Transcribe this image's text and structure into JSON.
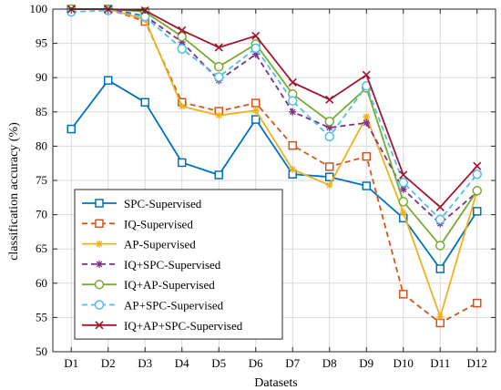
{
  "chart_data": {
    "type": "line",
    "xlabel": "Datasets",
    "ylabel": "classification accuracy (%)",
    "ylim": [
      50,
      100
    ],
    "yticks": [
      50,
      55,
      60,
      65,
      70,
      75,
      80,
      85,
      90,
      95,
      100
    ],
    "grid": true,
    "legend_position": "bottom-left",
    "categories": [
      "D1",
      "D2",
      "D3",
      "D4",
      "D5",
      "D6",
      "D7",
      "D8",
      "D9",
      "D10",
      "D11",
      "D12"
    ],
    "series": [
      {
        "name": "SPC-Supervised",
        "color": "#0072BD",
        "dash": "solid",
        "marker": "square",
        "values": [
          82.5,
          89.6,
          86.4,
          77.6,
          75.8,
          83.9,
          75.9,
          75.5,
          74.2,
          69.5,
          62.1,
          70.5
        ]
      },
      {
        "name": "IQ-Supervised",
        "color": "#D95319",
        "dash": "dashed",
        "marker": "square",
        "values": [
          100,
          100,
          98.2,
          86.4,
          85.1,
          86.3,
          80.1,
          77.0,
          78.5,
          58.4,
          54.2,
          57.1
        ]
      },
      {
        "name": "AP-Supervised",
        "color": "#EDB120",
        "dash": "solid",
        "marker": "asterisk",
        "values": [
          100,
          100,
          98.5,
          85.8,
          84.5,
          85.2,
          76.6,
          74.3,
          84.3,
          70.3,
          55.1,
          73.5
        ]
      },
      {
        "name": "IQ+SPC-Supervised",
        "color": "#7E2F8E",
        "dash": "dashed",
        "marker": "asterisk",
        "values": [
          100,
          100,
          99.0,
          95.2,
          89.6,
          93.4,
          85.0,
          82.7,
          83.4,
          73.7,
          68.7,
          73.3
        ]
      },
      {
        "name": "IQ+AP-Supervised",
        "color": "#77AC30",
        "dash": "solid",
        "marker": "circle",
        "values": [
          100,
          100,
          99.6,
          96.0,
          91.6,
          94.9,
          87.6,
          83.6,
          88.5,
          71.9,
          65.5,
          73.5
        ]
      },
      {
        "name": "AP+SPC-Supervised",
        "color": "#4DBEEE",
        "dash": "dashed",
        "marker": "circle",
        "values": [
          99.6,
          99.8,
          98.9,
          94.2,
          90.1,
          94.3,
          86.6,
          81.4,
          88.8,
          74.7,
          69.3,
          75.9
        ]
      },
      {
        "name": "IQ+AP+SPC-Supervised",
        "color": "#A2142F",
        "dash": "solid",
        "marker": "x",
        "values": [
          100,
          100,
          99.8,
          96.9,
          94.4,
          96.1,
          89.3,
          86.8,
          90.4,
          75.8,
          71.1,
          77.1
        ]
      }
    ]
  }
}
